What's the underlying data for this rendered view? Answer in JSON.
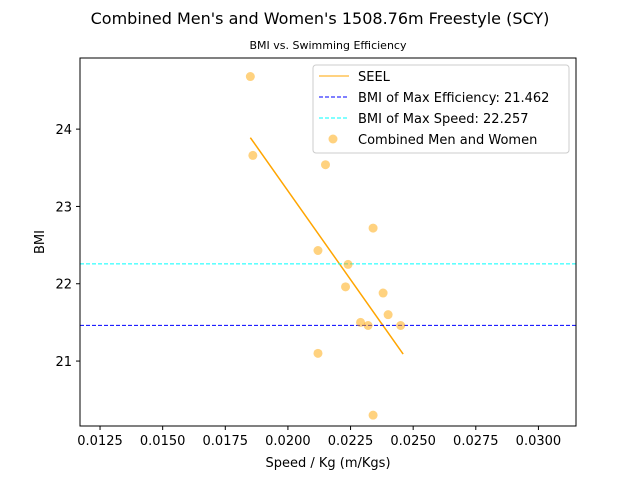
{
  "chart_data": {
    "type": "scatter",
    "title": "Combined Men's and Women's 1508.76m Freestyle (SCY)",
    "subtitle": "BMI vs. Swimming Efficiency",
    "xlabel": "Speed / Kg (m/Kgs)",
    "ylabel": "BMI",
    "xlim": [
      0.0117,
      0.0315
    ],
    "ylim": [
      20.16,
      24.92
    ],
    "xticks": [
      0.0125,
      0.015,
      0.0175,
      0.02,
      0.0225,
      0.025,
      0.0275,
      0.03
    ],
    "xtick_labels": [
      "0.0125",
      "0.0150",
      "0.0175",
      "0.0200",
      "0.0225",
      "0.0250",
      "0.0275",
      "0.0300"
    ],
    "yticks": [
      21,
      22,
      23,
      24
    ],
    "ytick_labels": [
      "21",
      "22",
      "23",
      "24"
    ],
    "grid": false,
    "legend_position": "top-right",
    "series": [
      {
        "name": "SEEL",
        "kind": "line",
        "color": "#ffa500",
        "x": [
          0.0185,
          0.0246
        ],
        "y": [
          23.89,
          21.09
        ]
      },
      {
        "name": "BMI of Max Efficiency: 21.462",
        "kind": "hline",
        "color": "#0000ff",
        "dash": "dashed",
        "y": 21.462
      },
      {
        "name": "BMI of Max Speed: 22.257",
        "kind": "hline",
        "color": "#00ffff",
        "dash": "dashed",
        "y": 22.257
      },
      {
        "name": "Combined Men and Women",
        "kind": "scatter",
        "color": "#ffa500",
        "opacity": 0.5,
        "points": [
          [
            0.0185,
            24.68
          ],
          [
            0.0186,
            23.66
          ],
          [
            0.0215,
            23.54
          ],
          [
            0.0234,
            22.72
          ],
          [
            0.0212,
            22.43
          ],
          [
            0.0224,
            22.25
          ],
          [
            0.0223,
            21.96
          ],
          [
            0.0238,
            21.88
          ],
          [
            0.024,
            21.6
          ],
          [
            0.0229,
            21.5
          ],
          [
            0.0232,
            21.46
          ],
          [
            0.0245,
            21.46
          ],
          [
            0.0212,
            21.1
          ],
          [
            0.0234,
            20.3
          ]
        ]
      }
    ]
  }
}
